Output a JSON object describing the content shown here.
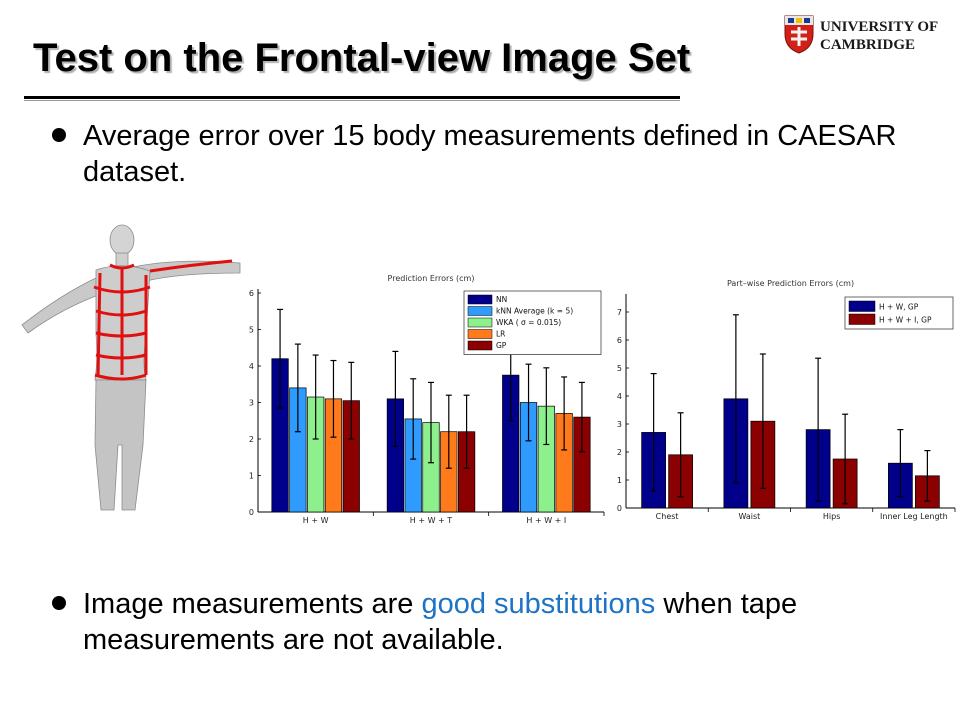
{
  "slide": {
    "title": "Test on the Frontal-view Image Set",
    "logo": {
      "line1": "UNIVERSITY OF",
      "line2": "CAMBRIDGE"
    },
    "bullets": [
      {
        "text": "Average error over 15 body measurements defined in CAESAR dataset."
      },
      {
        "before": "Image measurements are ",
        "highlight": "good substitutions",
        "after": " when tape measurements are not available."
      }
    ],
    "colors": {
      "highlight": "#1f73c4"
    },
    "body_model_icon": "human-body-model-with-measurement-lines"
  },
  "chart_data": [
    {
      "type": "bar",
      "title": "Prediction Errors (cm)",
      "categories": [
        "H + W",
        "H + W + T",
        "H + W + I"
      ],
      "ylim": [
        0,
        6
      ],
      "yticks": [
        0,
        1,
        2,
        3,
        4,
        5,
        6
      ],
      "legend_position": "top-right",
      "series": [
        {
          "name": "NN",
          "color": "#00008b",
          "values": [
            4.2,
            3.1,
            3.75
          ],
          "errors": [
            1.35,
            1.3,
            1.25
          ]
        },
        {
          "name": "kNN Average (k = 5)",
          "color": "#2f9bff",
          "values": [
            3.4,
            2.55,
            3.0
          ],
          "errors": [
            1.2,
            1.1,
            1.05
          ]
        },
        {
          "name": "WKA ( σ = 0.015)",
          "color": "#8df08d",
          "values": [
            3.15,
            2.45,
            2.9
          ],
          "errors": [
            1.15,
            1.1,
            1.05
          ]
        },
        {
          "name": "LR",
          "color": "#ff7a1a",
          "values": [
            3.1,
            2.2,
            2.7
          ],
          "errors": [
            1.05,
            1.0,
            1.0
          ]
        },
        {
          "name": "GP",
          "color": "#8b0000",
          "values": [
            3.05,
            2.2,
            2.6
          ],
          "errors": [
            1.05,
            1.0,
            0.95
          ]
        }
      ]
    },
    {
      "type": "bar",
      "title": "Part–wise Prediction Errors (cm)",
      "categories": [
        "Chest",
        "Waist",
        "Hips",
        "Inner Leg Length"
      ],
      "ylim": [
        0,
        7.5
      ],
      "yticks": [
        0,
        1,
        2,
        3,
        4,
        5,
        6,
        7
      ],
      "legend_position": "top-right",
      "series": [
        {
          "name": "H + W, GP",
          "color": "#00008b",
          "values": [
            2.7,
            3.9,
            2.8,
            1.6
          ],
          "errors": [
            2.1,
            3.0,
            2.55,
            1.2
          ]
        },
        {
          "name": "H + W + I, GP",
          "color": "#8b0000",
          "values": [
            1.9,
            3.1,
            1.75,
            1.15
          ],
          "errors": [
            1.5,
            2.4,
            1.6,
            0.9
          ]
        }
      ]
    }
  ]
}
